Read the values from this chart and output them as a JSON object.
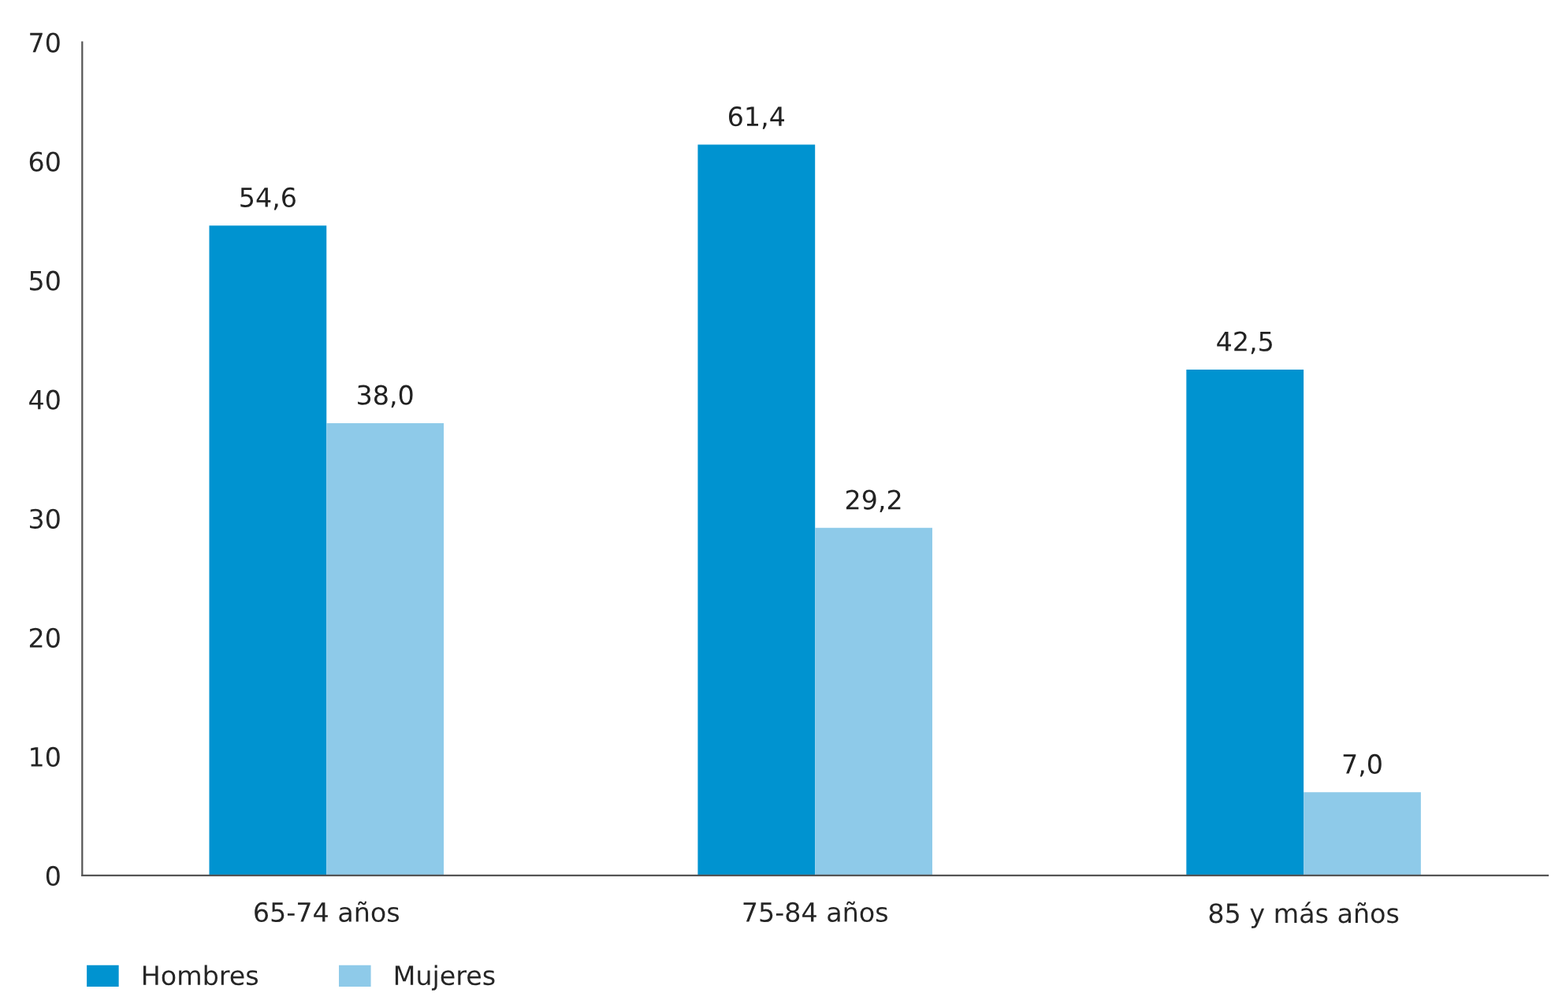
{
  "chart_data": {
    "type": "bar",
    "categories": [
      "65-74 años",
      "75-84 años",
      "85 y más años"
    ],
    "series": [
      {
        "name": "Hombres",
        "color": "#0093d0",
        "values": [
          54.6,
          61.4,
          42.5
        ],
        "value_labels": [
          "54,6",
          "61,4",
          "42,5"
        ]
      },
      {
        "name": "Mujeres",
        "color": "#8ecae9",
        "values": [
          38.0,
          29.2,
          7.0
        ],
        "value_labels": [
          "38,0",
          "29,2",
          "7,0"
        ]
      }
    ],
    "ylim": [
      0,
      70
    ],
    "yticks": [
      0,
      10,
      20,
      30,
      40,
      50,
      60,
      70
    ],
    "grid": false,
    "legend": "bottom left"
  }
}
